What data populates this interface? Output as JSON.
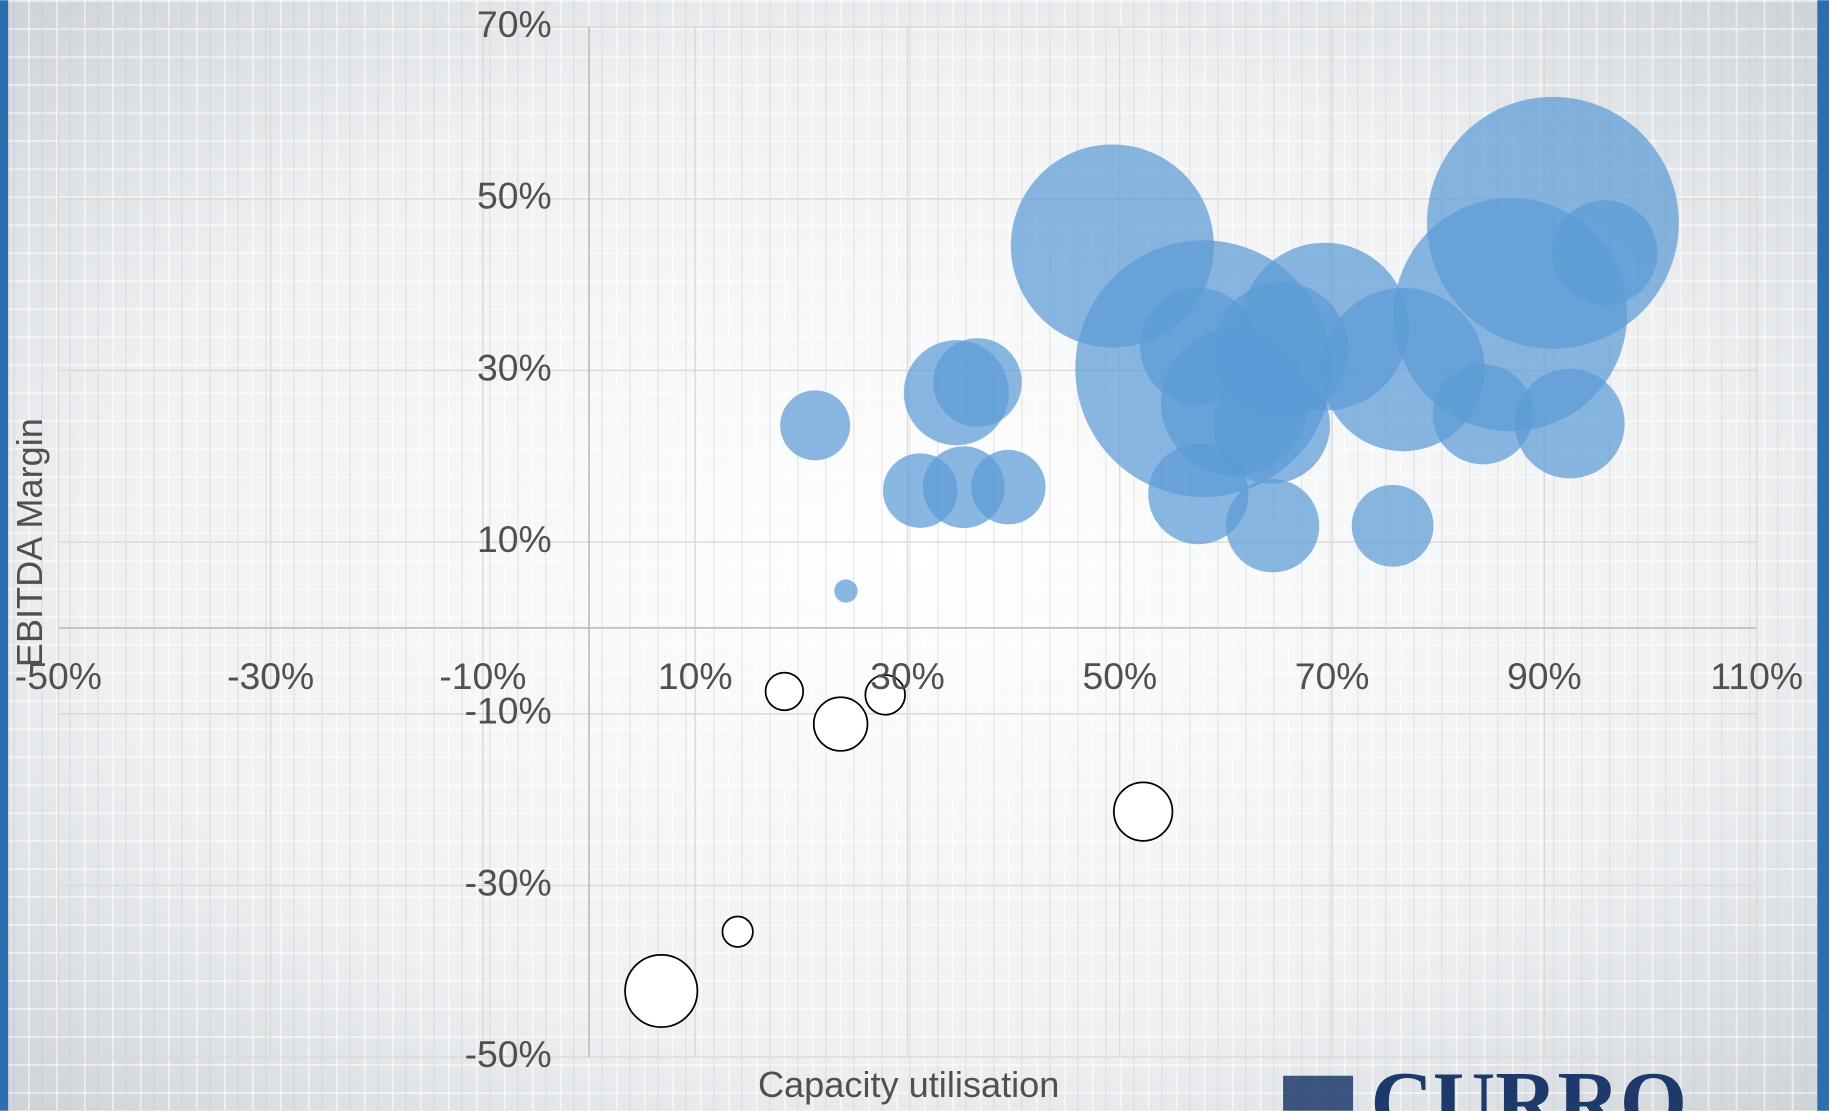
{
  "chart_data": {
    "type": "bubble",
    "x_label": "Capacity utilisation",
    "y_label": "EBITDA Margin",
    "logo": "CURRO",
    "xlim": [
      -50,
      110
    ],
    "ylim": [
      -50,
      70
    ],
    "xticks": [
      {
        "value": -50,
        "label": "-50%"
      },
      {
        "value": -30,
        "label": "-30%"
      },
      {
        "value": -10,
        "label": "-10%"
      },
      {
        "value": 10,
        "label": "10%"
      },
      {
        "value": 30,
        "label": "30%"
      },
      {
        "value": 50,
        "label": "50%"
      },
      {
        "value": 70,
        "label": "70%"
      },
      {
        "value": 90,
        "label": "90%"
      },
      {
        "value": 110,
        "label": "110%"
      }
    ],
    "yticks": [
      {
        "value": -50,
        "label": "-50%"
      },
      {
        "value": -30,
        "label": "-30%"
      },
      {
        "value": -10,
        "label": "-10%"
      },
      {
        "value": 10,
        "label": "10%"
      },
      {
        "value": 30,
        "label": "30%"
      },
      {
        "value": 50,
        "label": "50%"
      },
      {
        "value": 70,
        "label": "70%"
      }
    ],
    "grid": true,
    "series": [
      {
        "color": "#5b9bd5",
        "filled": true,
        "x": [
          21.3,
          24.2,
          34.6,
          36.6,
          31.2,
          35.3,
          39.5,
          49.3,
          57.9,
          57.4,
          57.4,
          60.8,
          64.3,
          65.2,
          69.3,
          64.4,
          76.7,
          75.7,
          84.2,
          86.8,
          90.8,
          95.7,
          92.4
        ],
        "values": [
          23.6,
          4.3,
          27.4,
          28.6,
          16.0,
          16.4,
          16.4,
          44.5,
          30.2,
          32.8,
          15.6,
          26.3,
          23.6,
          32.4,
          35.1,
          11.9,
          30.1,
          11.9,
          24.9,
          36.5,
          47.2,
          43.7,
          23.8
        ],
        "sizes": [
          9,
          1,
          20.3,
          14.4,
          10.2,
          12.3,
          10.2,
          75.7,
          121,
          25,
          18.5,
          39.7,
          25,
          33.6,
          51.8,
          16,
          49,
          12.3,
          18.5,
          100,
          116.6,
          20.3,
          22.1
        ]
      },
      {
        "color": "#000000",
        "filled": false,
        "x": [
          18.4,
          23.7,
          27.9,
          52.2,
          14.0,
          6.8
        ],
        "values": [
          -7.4,
          -11.2,
          -7.8,
          -21.4,
          -35.4,
          -42.3
        ],
        "sizes": [
          2.6,
          5.3,
          2.9,
          6.3,
          1.7,
          9.6
        ]
      }
    ]
  }
}
